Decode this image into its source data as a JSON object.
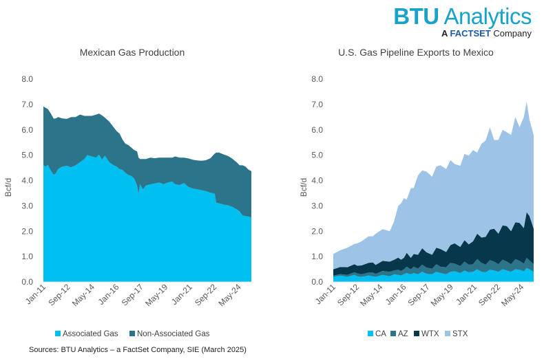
{
  "logo": {
    "brand_bold": "BTU",
    "brand_rest": " Analytics",
    "sub_prefix": "A ",
    "sub_factset": "FACTSET",
    "sub_suffix": " Company"
  },
  "source": "Sources: BTU Analytics – a FactSet Company, SIE (March 2025)",
  "colors": {
    "associated": "#00c0f2",
    "non_associated": "#2c7489",
    "CA": "#00c0f2",
    "AZ": "#2c7489",
    "WTX": "#07374a",
    "STX": "#9dc3e6"
  },
  "chart_data": [
    {
      "type": "area",
      "stacked": true,
      "title": "Mexican Gas Production",
      "ylabel": "Bcf/d",
      "xlabel": "",
      "ylim": [
        0,
        8
      ],
      "yticks": [
        "0.0",
        "1.0",
        "2.0",
        "3.0",
        "4.0",
        "5.0",
        "6.0",
        "7.0",
        "8.0"
      ],
      "xlim": [
        2011.0,
        2025.2
      ],
      "xticks": [
        "Jan-11",
        "Sep-12",
        "May-14",
        "Jan-16",
        "Sep-17",
        "May-19",
        "Jan-21",
        "Sep-22",
        "May-24"
      ],
      "xtick_positions": [
        2011.0,
        2012.667,
        2014.333,
        2016.0,
        2017.667,
        2019.333,
        2021.0,
        2022.667,
        2024.333
      ],
      "x": [
        2011.0,
        2011.15,
        2011.3,
        2011.5,
        2011.7,
        2011.85,
        2012.0,
        2012.3,
        2012.6,
        2012.9,
        2013.2,
        2013.5,
        2013.8,
        2014.0,
        2014.3,
        2014.6,
        2014.8,
        2015.0,
        2015.2,
        2015.5,
        2015.8,
        2016.0,
        2016.2,
        2016.4,
        2016.6,
        2016.8,
        2017.0,
        2017.2,
        2017.4,
        2017.5,
        2017.6,
        2017.8,
        2018.0,
        2018.3,
        2018.6,
        2018.9,
        2019.2,
        2019.5,
        2019.8,
        2020.0,
        2020.3,
        2020.6,
        2020.9,
        2021.2,
        2021.5,
        2021.8,
        2022.1,
        2022.4,
        2022.7,
        2022.8,
        2023.0,
        2023.3,
        2023.6,
        2023.9,
        2024.2,
        2024.4,
        2024.6,
        2024.8,
        2025.0,
        2025.2
      ],
      "legend": [
        "Associated Gas",
        "Non-Associated Gas"
      ],
      "legend_position": "bottom",
      "series": [
        {
          "name": "Associated Gas",
          "values": [
            4.6,
            4.55,
            4.62,
            4.4,
            4.22,
            4.28,
            4.45,
            4.55,
            4.58,
            4.52,
            4.6,
            4.72,
            4.85,
            5.0,
            4.95,
            4.9,
            5.02,
            4.82,
            4.98,
            4.72,
            4.6,
            4.55,
            4.45,
            4.42,
            4.3,
            4.22,
            4.18,
            4.08,
            3.8,
            3.45,
            3.85,
            3.65,
            3.8,
            3.85,
            3.88,
            3.92,
            3.85,
            3.92,
            3.96,
            3.85,
            3.82,
            3.9,
            3.75,
            3.68,
            3.65,
            3.62,
            3.58,
            3.52,
            3.48,
            3.12,
            3.1,
            3.05,
            3.02,
            2.96,
            2.86,
            2.78,
            2.62,
            2.6,
            2.58,
            2.54
          ]
        },
        {
          "name": "Non-Associated Gas",
          "values": [
            2.32,
            2.32,
            2.2,
            2.25,
            2.22,
            2.17,
            2.05,
            1.9,
            1.85,
            1.98,
            1.9,
            1.88,
            1.7,
            1.55,
            1.6,
            1.7,
            1.62,
            1.75,
            1.5,
            1.6,
            1.5,
            1.4,
            1.4,
            1.2,
            1.15,
            1.18,
            1.12,
            1.12,
            1.35,
            1.45,
            1.0,
            1.2,
            1.05,
            1.05,
            1.0,
            0.98,
            1.05,
            0.98,
            0.94,
            1.1,
            1.08,
            1.0,
            1.12,
            1.14,
            1.14,
            1.16,
            1.22,
            1.36,
            1.58,
            1.98,
            2.0,
            1.98,
            1.95,
            1.9,
            1.86,
            1.82,
            1.98,
            1.95,
            1.85,
            1.83
          ]
        }
      ]
    },
    {
      "type": "area",
      "stacked": true,
      "title": "U.S. Gas Pipeline Exports to Mexico",
      "ylabel": "Bcf/d",
      "xlabel": "",
      "ylim": [
        0,
        8
      ],
      "yticks": [
        "0.0",
        "1.0",
        "2.0",
        "3.0",
        "4.0",
        "5.0",
        "6.0",
        "7.0",
        "8.0"
      ],
      "xlim": [
        2011.0,
        2025.2
      ],
      "xticks": [
        "Jan-11",
        "Sep-12",
        "May-14",
        "Jan-16",
        "Sep-17",
        "May-19",
        "Jan-21",
        "Sep-22",
        "May-24"
      ],
      "xtick_positions": [
        2011.0,
        2012.667,
        2014.333,
        2016.0,
        2017.667,
        2019.333,
        2021.0,
        2022.667,
        2024.333
      ],
      "x": [
        2011.0,
        2011.5,
        2012.0,
        2012.5,
        2012.7,
        2013.0,
        2013.5,
        2013.8,
        2014.0,
        2014.5,
        2015.0,
        2015.3,
        2015.6,
        2015.8,
        2016.0,
        2016.2,
        2016.5,
        2016.7,
        2017.0,
        2017.3,
        2017.6,
        2018.0,
        2018.3,
        2018.6,
        2019.0,
        2019.3,
        2019.6,
        2020.0,
        2020.3,
        2020.6,
        2020.9,
        2021.2,
        2021.5,
        2021.8,
        2022.1,
        2022.4,
        2022.7,
        2023.0,
        2023.3,
        2023.6,
        2023.9,
        2024.2,
        2024.5,
        2024.7,
        2024.9,
        2025.2
      ],
      "legend": [
        "CA",
        "AZ",
        "WTX",
        "STX"
      ],
      "legend_position": "bottom",
      "series": [
        {
          "name": "CA",
          "values": [
            0.2,
            0.25,
            0.2,
            0.28,
            0.22,
            0.2,
            0.25,
            0.22,
            0.2,
            0.28,
            0.22,
            0.3,
            0.28,
            0.25,
            0.3,
            0.35,
            0.3,
            0.35,
            0.3,
            0.4,
            0.32,
            0.3,
            0.4,
            0.35,
            0.3,
            0.4,
            0.42,
            0.35,
            0.45,
            0.38,
            0.4,
            0.5,
            0.4,
            0.38,
            0.48,
            0.45,
            0.4,
            0.5,
            0.45,
            0.4,
            0.5,
            0.48,
            0.42,
            0.55,
            0.5,
            0.4
          ]
        },
        {
          "name": "AZ",
          "values": [
            0.05,
            0.06,
            0.08,
            0.1,
            0.12,
            0.1,
            0.12,
            0.15,
            0.12,
            0.15,
            0.18,
            0.15,
            0.2,
            0.18,
            0.2,
            0.25,
            0.2,
            0.25,
            0.22,
            0.28,
            0.25,
            0.22,
            0.3,
            0.25,
            0.28,
            0.35,
            0.3,
            0.28,
            0.35,
            0.3,
            0.3,
            0.4,
            0.35,
            0.3,
            0.38,
            0.35,
            0.3,
            0.38,
            0.35,
            0.3,
            0.4,
            0.35,
            0.3,
            0.4,
            0.35,
            0.3
          ]
        },
        {
          "name": "WTX",
          "values": [
            0.25,
            0.28,
            0.3,
            0.32,
            0.3,
            0.35,
            0.38,
            0.4,
            0.35,
            0.4,
            0.4,
            0.42,
            0.48,
            0.45,
            0.45,
            0.55,
            0.45,
            0.5,
            0.55,
            0.65,
            0.6,
            0.55,
            0.65,
            0.7,
            0.6,
            0.7,
            0.8,
            0.75,
            0.85,
            0.8,
            0.9,
            1.0,
            1.0,
            1.1,
            1.2,
            1.3,
            1.2,
            1.35,
            1.4,
            1.3,
            1.45,
            1.5,
            1.4,
            1.8,
            1.75,
            1.4
          ]
        },
        {
          "name": "STX",
          "values": [
            0.6,
            0.66,
            0.77,
            0.8,
            0.88,
            0.95,
            1.05,
            1.03,
            1.23,
            1.25,
            1.2,
            1.5,
            2.04,
            2.22,
            2.35,
            2.1,
            2.75,
            2.6,
            3.13,
            3.07,
            3.18,
            3.08,
            3.2,
            3.3,
            3.27,
            3.35,
            3.13,
            3.2,
            3.4,
            3.5,
            3.6,
            3.2,
            3.7,
            3.8,
            4.04,
            3.5,
            3.7,
            3.77,
            3.7,
            3.8,
            4.15,
            3.77,
            4.38,
            4.35,
            3.8,
            3.7
          ]
        }
      ]
    }
  ]
}
